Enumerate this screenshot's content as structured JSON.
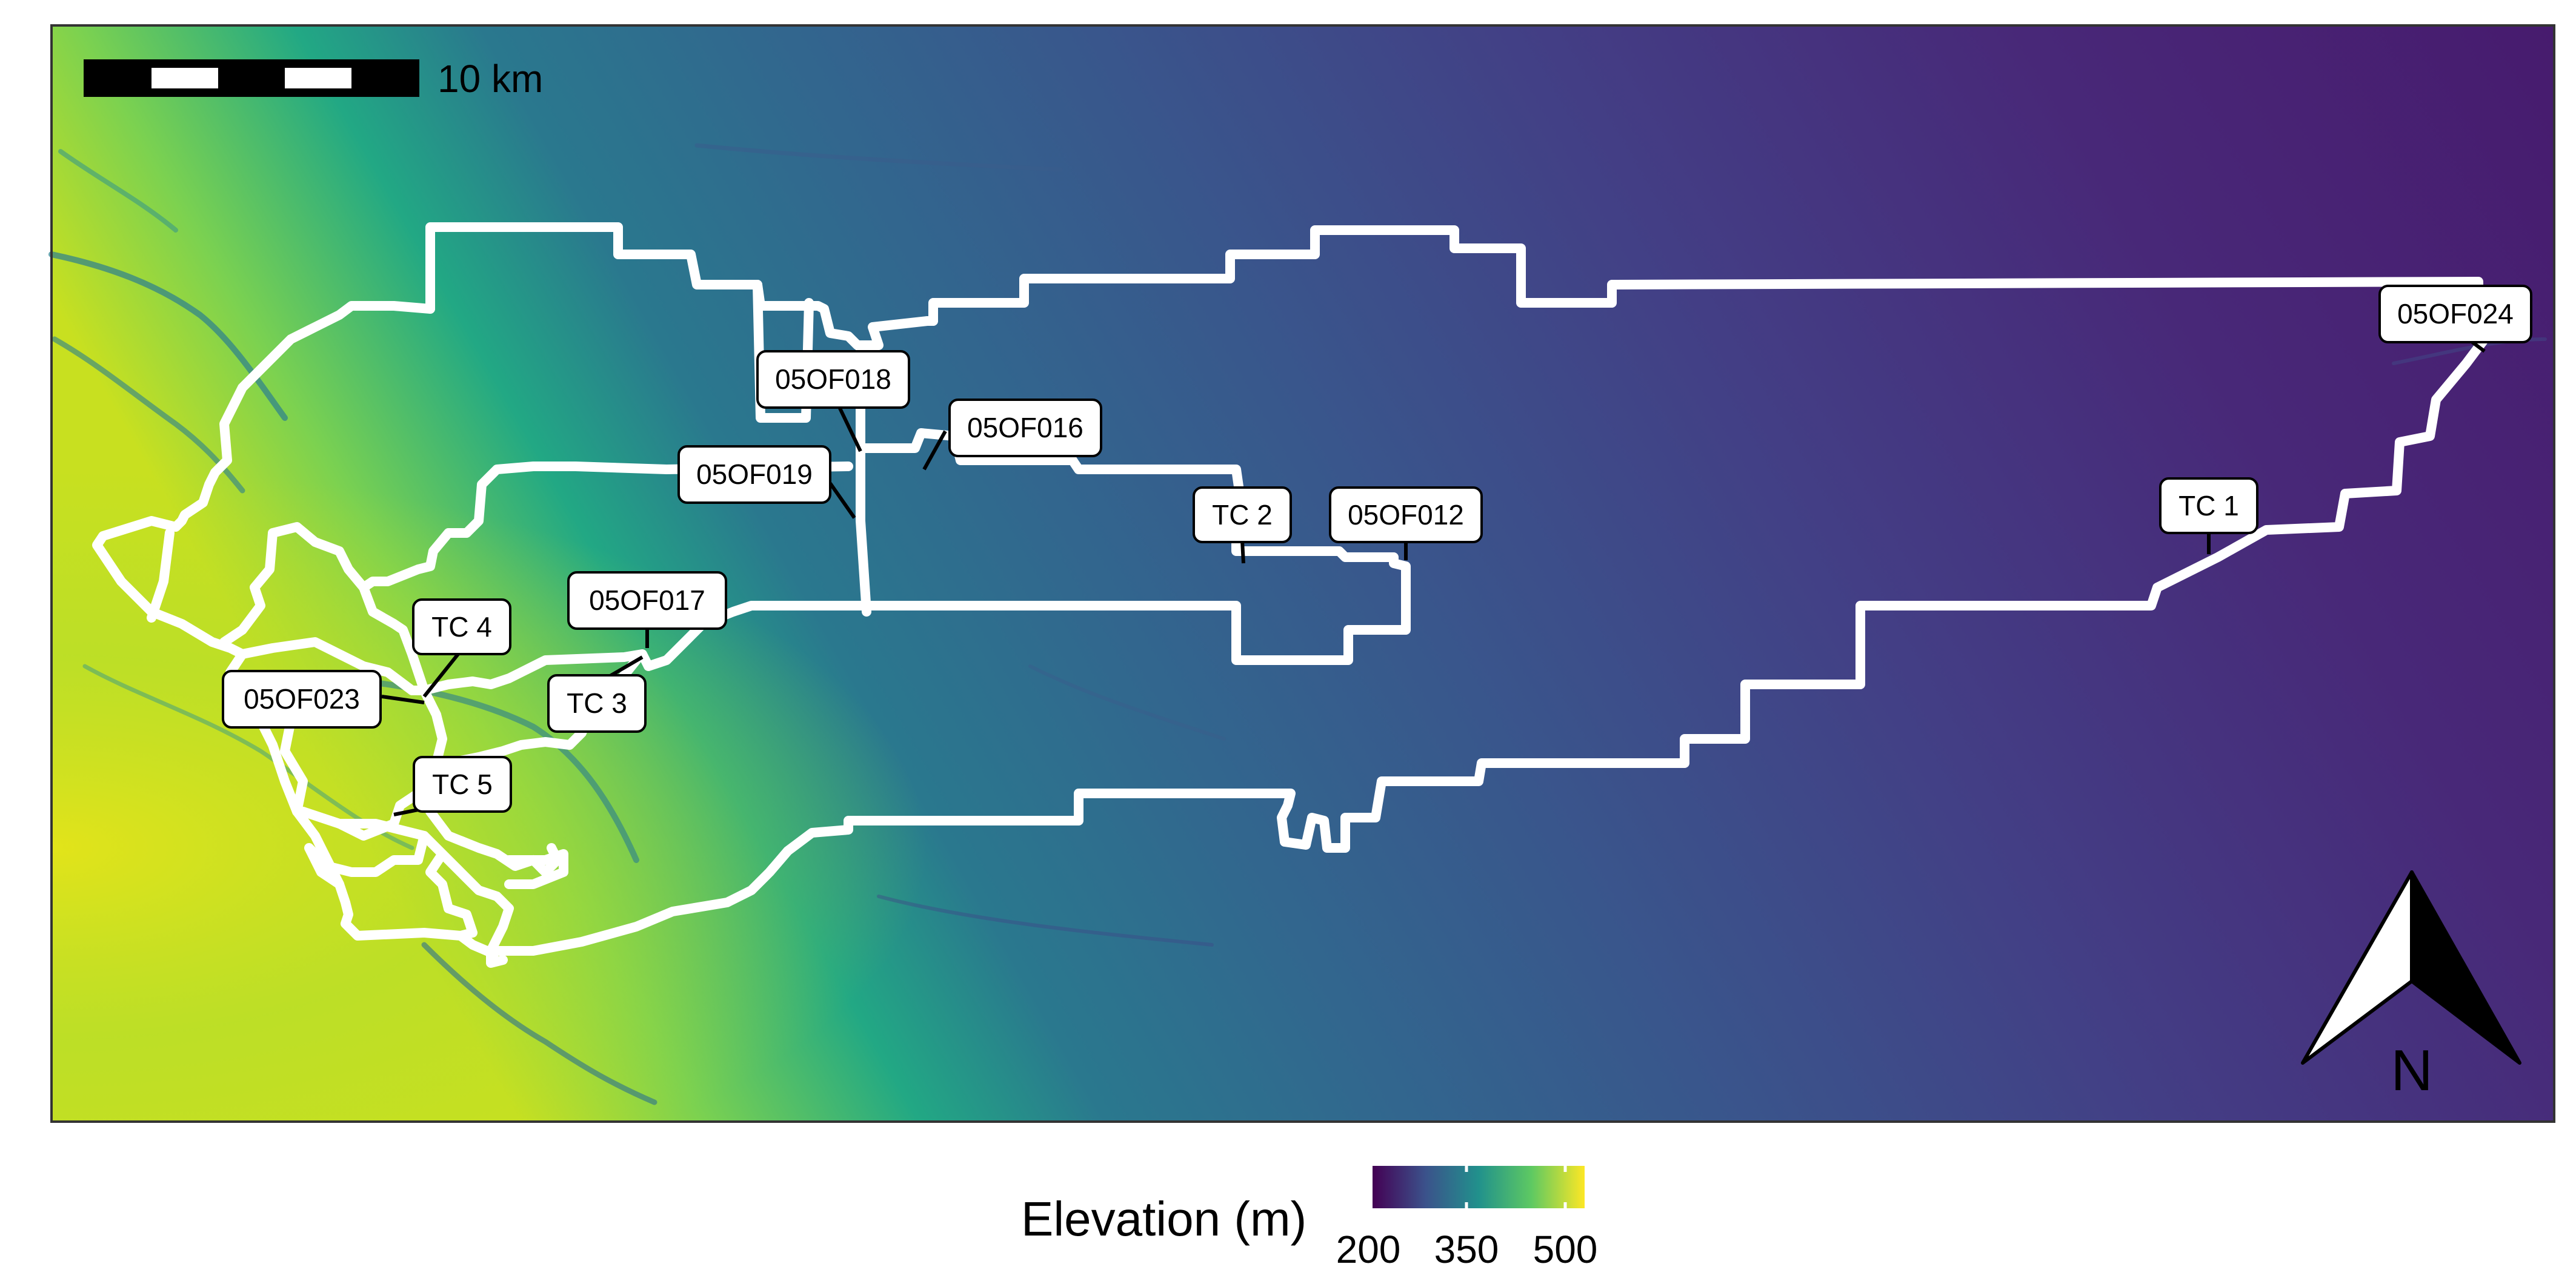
{
  "scale_bar": {
    "label": "10 km"
  },
  "north_arrow": {
    "label": "N"
  },
  "legend": {
    "title": "Elevation (m)",
    "ticks": [
      "200",
      "350",
      "500"
    ],
    "colors": [
      "#440154",
      "#3b528b",
      "#21918c",
      "#5ec962",
      "#fde725"
    ]
  },
  "stations": [
    {
      "id": "05OF024",
      "label": "05OF024"
    },
    {
      "id": "05OF018",
      "label": "05OF018"
    },
    {
      "id": "05OF016",
      "label": "05OF016"
    },
    {
      "id": "05OF019",
      "label": "05OF019"
    },
    {
      "id": "TC2",
      "label": "TC 2"
    },
    {
      "id": "05OF012",
      "label": "05OF012"
    },
    {
      "id": "TC1",
      "label": "TC 1"
    },
    {
      "id": "05OF017",
      "label": "05OF017"
    },
    {
      "id": "TC4",
      "label": "TC 4"
    },
    {
      "id": "05OF023",
      "label": "05OF023"
    },
    {
      "id": "TC3",
      "label": "TC 3"
    },
    {
      "id": "TC5",
      "label": "TC 5"
    }
  ]
}
